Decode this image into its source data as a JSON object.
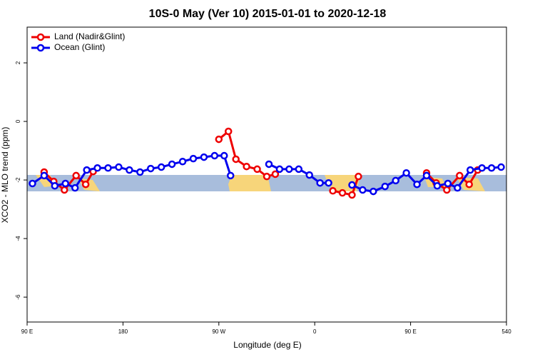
{
  "chart_data": {
    "type": "line",
    "title": "10S-0 May (Ver 10)   2015-01-01 to 2020-12-18",
    "x_label": "Longitude (deg E)",
    "y_label": "XCO2 - MLO trend (ppm)",
    "xlim": [
      90,
      540
    ],
    "ylim": [
      -6.85,
      3.22
    ],
    "xticks": [
      {
        "value": 90,
        "label": "90 E"
      },
      180,
      {
        "value": 270,
        "label": "90 W"
      },
      {
        "value": 360,
        "label": "0"
      },
      {
        "value": 450,
        "label": "90 E"
      },
      540
    ],
    "yticks": [
      2,
      0,
      -2,
      -4,
      -6
    ],
    "legend": "top-left",
    "series": [
      {
        "name": "Land (Nadir&Glint)",
        "color": "#ee0000",
        "x": [
          106,
          115,
          125,
          136,
          145,
          152,
          null,
          270,
          279,
          286,
          296,
          306,
          315,
          323,
          null,
          377,
          386,
          395,
          401,
          null,
          465,
          474,
          484,
          496,
          505,
          513
        ],
        "values": [
          -1.73,
          -2.05,
          -2.34,
          -1.85,
          -2.15,
          -1.71,
          null,
          -0.61,
          -0.34,
          -1.29,
          -1.54,
          -1.63,
          -1.88,
          -1.8,
          null,
          -2.37,
          -2.44,
          -2.51,
          -1.88,
          null,
          -1.76,
          -2.1,
          -2.34,
          -1.85,
          -2.15,
          -1.66
        ]
      },
      {
        "name": "Ocean (Glint)",
        "color": "#0000ee",
        "x": [
          95,
          106,
          116,
          126,
          135,
          146,
          156,
          166,
          176,
          186,
          196,
          206,
          216,
          226,
          236,
          246,
          256,
          266,
          275,
          281,
          null,
          317,
          327,
          336,
          345,
          355,
          365,
          373,
          null,
          395,
          405,
          415,
          426,
          436,
          446,
          456,
          465,
          475,
          485,
          494,
          506,
          517,
          526,
          535
        ],
        "values": [
          -2.12,
          -1.85,
          -2.2,
          -2.12,
          -2.27,
          -1.66,
          -1.59,
          -1.59,
          -1.56,
          -1.66,
          -1.73,
          -1.61,
          -1.56,
          -1.46,
          -1.37,
          -1.27,
          -1.22,
          -1.17,
          -1.17,
          -1.85,
          null,
          -1.46,
          -1.63,
          -1.63,
          -1.63,
          -1.83,
          -2.1,
          -2.1,
          null,
          -2.17,
          -2.34,
          -2.39,
          -2.22,
          -2.02,
          -1.76,
          -2.15,
          -1.85,
          -2.2,
          -2.12,
          -2.27,
          -1.66,
          -1.59,
          -1.59,
          -1.56
        ]
      }
    ]
  }
}
